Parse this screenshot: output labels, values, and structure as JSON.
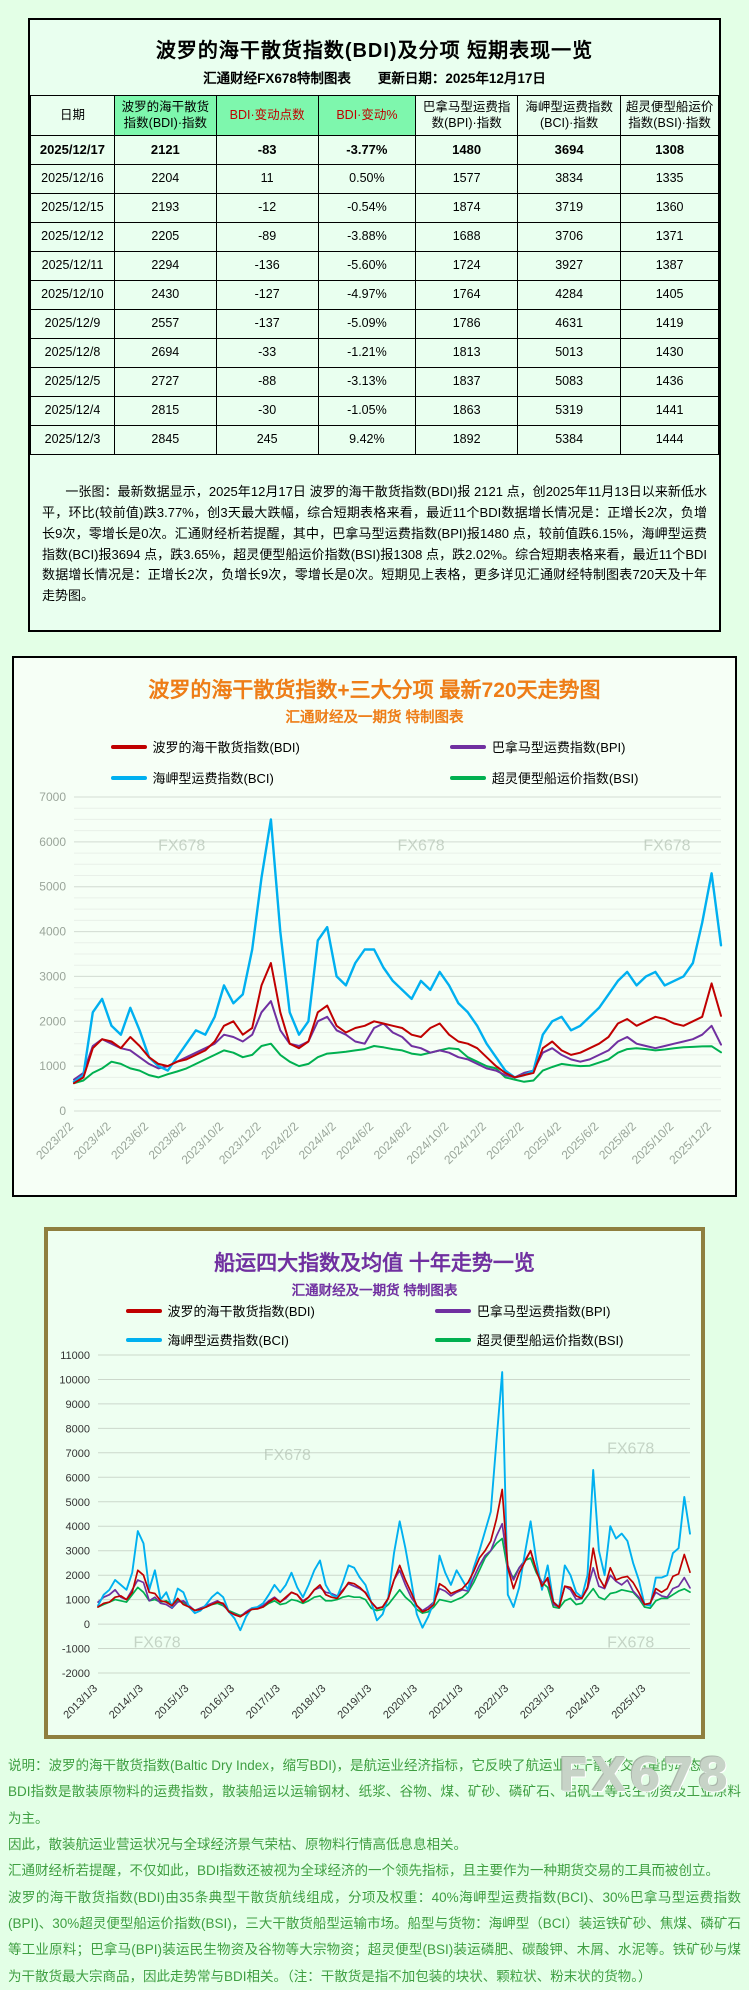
{
  "table_section": {
    "title": "波罗的海干散货指数(BDI)及分项  短期表现一览",
    "subtitle": "汇通财经FX678特制图表　　更新日期：2025年12月17日",
    "columns": [
      "日期",
      "波罗的海干散货指数(BDI)·指数",
      "BDI·变动点数",
      "BDI·变动%",
      "巴拿马型运费指数(BPI)·指数",
      "海岬型运费指数(BCI)·指数",
      "超灵便型船运价指数(BSI)·指数"
    ],
    "rows": [
      {
        "date": "2025/12/17",
        "bdi": "2121",
        "change": "-83",
        "change_pct": "-3.77%",
        "bpi": "1480",
        "bci": "3694",
        "bsi": "1308"
      },
      {
        "date": "2025/12/16",
        "bdi": "2204",
        "change": "11",
        "change_pct": "0.50%",
        "bpi": "1577",
        "bci": "3834",
        "bsi": "1335"
      },
      {
        "date": "2025/12/15",
        "bdi": "2193",
        "change": "-12",
        "change_pct": "-0.54%",
        "bpi": "1874",
        "bci": "3719",
        "bsi": "1360"
      },
      {
        "date": "2025/12/12",
        "bdi": "2205",
        "change": "-89",
        "change_pct": "-3.88%",
        "bpi": "1688",
        "bci": "3706",
        "bsi": "1371"
      },
      {
        "date": "2025/12/11",
        "bdi": "2294",
        "change": "-136",
        "change_pct": "-5.60%",
        "bpi": "1724",
        "bci": "3927",
        "bsi": "1387"
      },
      {
        "date": "2025/12/10",
        "bdi": "2430",
        "change": "-127",
        "change_pct": "-4.97%",
        "bpi": "1764",
        "bci": "4284",
        "bsi": "1405"
      },
      {
        "date": "2025/12/9",
        "bdi": "2557",
        "change": "-137",
        "change_pct": "-5.09%",
        "bpi": "1786",
        "bci": "4631",
        "bsi": "1419"
      },
      {
        "date": "2025/12/8",
        "bdi": "2694",
        "change": "-33",
        "change_pct": "-1.21%",
        "bpi": "1813",
        "bci": "5013",
        "bsi": "1430"
      },
      {
        "date": "2025/12/5",
        "bdi": "2727",
        "change": "-88",
        "change_pct": "-3.13%",
        "bpi": "1837",
        "bci": "5083",
        "bsi": "1436"
      },
      {
        "date": "2025/12/4",
        "bdi": "2815",
        "change": "-30",
        "change_pct": "-1.05%",
        "bpi": "1863",
        "bci": "5319",
        "bsi": "1441"
      },
      {
        "date": "2025/12/3",
        "bdi": "2845",
        "change": "245",
        "change_pct": "9.42%",
        "bpi": "1892",
        "bci": "5384",
        "bsi": "1444"
      }
    ],
    "summary": "一张图：最新数据显示，2025年12月17日 波罗的海干散货指数(BDI)报 2121 点，创2025年11月13日以来新低水平，环比(较前值)跌3.77%，创3天最大跌幅，综合短期表格来看，最近11个BDI数据增长情况是：正增长2次，负增长9次，零增长是0次。汇通财经析若提醒，其中，巴拿马型运费指数(BPI)报1480 点，较前值跌6.15%，海岬型运费指数(BCI)报3694 点，跌3.65%，超灵便型船运价指数(BSI)报1308 点，跌2.02%。综合短期表格来看，最近11个BDI数据增长情况是：正增长2次，负增长9次，零增长是0次。短期见上表格，更多详见汇通财经特制图表720天及十年走势图。"
  },
  "chart720_section": {
    "title": "波罗的海干散货指数+三大分项  最新720天走势图",
    "subtitle": "汇通财经及一期货 特制图表"
  },
  "chart10y_section": {
    "title": "船运四大指数及均值 十年走势一览",
    "subtitle": "汇通财经及一期货 特制图表"
  },
  "footer": {
    "lines": [
      "说明：波罗的海干散货指数(Baltic Dry Index，缩写BDI)，是航运业经济指标，它反映了航运业的干散货交易量的动态。",
      "BDI指数是散装原物料的运费指数，散装船运以运输钢材、纸浆、谷物、煤、矿砂、磷矿石、铝矾土等民生物资及工业原料为主。",
      "因此，散装航运业营运状况与全球经济景气荣枯、原物料行情高低息息相关。",
      "汇通财经析若提醒，不仅如此，BDI指数还被视为全球经济的一个领先指标，且主要作为一种期货交易的工具而被创立。",
      "波罗的海干散货指数(BDI)由35条典型干散货航线组成，分项及权重：40%海岬型运费指数(BCI)、30%巴拿马型运费指数(BPI)、30%超灵便型船运价指数(BSI)，三大干散货船型运输市场。船型与货物：海岬型（BCI）装运铁矿砂、焦煤、磷矿石等工业原料；巴拿马(BPI)装运民生物资及谷物等大宗物资；超灵便型(BSI)装运磷肥、碳酸钾、木屑、水泥等。铁矿砂与煤为干散货最大宗商品，因此走势常与BDI相关。（注：干散货是指不加包装的块状、颗粒状、粉末状的货物。）"
    ],
    "watermark": "FX678"
  },
  "chart_data": [
    {
      "type": "line",
      "dom_id": "chart720",
      "title": "波罗的海干散货指数+三大分项  最新720天走势图",
      "subtitle": "汇通财经及一期货 特制图表",
      "ylim": [
        0,
        7000
      ],
      "grid_step": 1000,
      "minor_step": 250,
      "grid_color": "#d4ded4",
      "minor_color": "#e9f0e9",
      "label_color": "#9aa59a",
      "legend_position": "top",
      "x_tick_span": 0.986,
      "x_labels": [
        "2023/2/2",
        "2023/4/2",
        "2023/6/2",
        "2023/8/2",
        "2023/10/2",
        "2023/12/2",
        "2024/2/2",
        "2024/4/2",
        "2024/6/2",
        "2024/8/2",
        "2024/10/2",
        "2024/12/2",
        "2025/2/2",
        "2025/4/2",
        "2025/6/2",
        "2025/8/2",
        "2025/10/2",
        "2025/12/2"
      ],
      "watermarks": [
        [
          0.13,
          0.17
        ],
        [
          0.5,
          0.17
        ],
        [
          0.88,
          0.17
        ]
      ],
      "draw_order": [
        3,
        1,
        2,
        0
      ],
      "series": [
        {
          "name": "波罗的海干散货指数(BDI)",
          "color": "#c00000",
          "width": 2,
          "values": [
            620,
            750,
            1400,
            1600,
            1550,
            1400,
            1650,
            1450,
            1200,
            1050,
            1000,
            1100,
            1150,
            1250,
            1350,
            1550,
            1900,
            2000,
            1700,
            1850,
            2800,
            3300,
            2200,
            1500,
            1400,
            1550,
            2200,
            2350,
            1900,
            1750,
            1850,
            1900,
            2000,
            1950,
            1900,
            1850,
            1700,
            1650,
            1850,
            1950,
            1700,
            1550,
            1500,
            1400,
            1200,
            1000,
            850,
            750,
            800,
            850,
            1400,
            1550,
            1350,
            1250,
            1300,
            1400,
            1500,
            1650,
            1950,
            2050,
            1900,
            2000,
            2100,
            2050,
            1950,
            1900,
            2000,
            2100,
            2845,
            2121
          ]
        },
        {
          "name": "巴拿马型运费指数(BPI)",
          "color": "#7030a0",
          "width": 2,
          "values": [
            700,
            850,
            1450,
            1600,
            1500,
            1400,
            1350,
            1200,
            1050,
            950,
            1000,
            1100,
            1200,
            1300,
            1400,
            1500,
            1700,
            1650,
            1550,
            1700,
            2200,
            2450,
            1800,
            1500,
            1450,
            1550,
            2000,
            2100,
            1800,
            1700,
            1550,
            1500,
            1850,
            1950,
            1750,
            1650,
            1450,
            1400,
            1300,
            1350,
            1300,
            1200,
            1150,
            1050,
            950,
            900,
            800,
            750,
            850,
            900,
            1300,
            1400,
            1250,
            1150,
            1100,
            1150,
            1250,
            1350,
            1550,
            1650,
            1500,
            1450,
            1400,
            1450,
            1500,
            1550,
            1600,
            1700,
            1900,
            1480
          ]
        },
        {
          "name": "海岬型运费指数(BCI)",
          "color": "#00b0f0",
          "width": 2.4,
          "values": [
            650,
            800,
            2200,
            2500,
            1900,
            1700,
            2300,
            1800,
            1200,
            1000,
            900,
            1200,
            1500,
            1800,
            1700,
            2100,
            2800,
            2400,
            2600,
            3600,
            5200,
            6500,
            4000,
            2200,
            1700,
            2000,
            3800,
            4100,
            3000,
            2800,
            3300,
            3600,
            3600,
            3200,
            2900,
            2700,
            2500,
            2900,
            2700,
            3100,
            2800,
            2400,
            2200,
            1900,
            1500,
            1200,
            900,
            750,
            800,
            900,
            1700,
            2000,
            2100,
            1800,
            1900,
            2100,
            2300,
            2600,
            2900,
            3100,
            2800,
            3000,
            3100,
            2800,
            2900,
            3000,
            3300,
            4200,
            5300,
            3694
          ]
        },
        {
          "name": "超灵便型船运价指数(BSI)",
          "color": "#00b050",
          "width": 2,
          "values": [
            620,
            680,
            850,
            950,
            1100,
            1050,
            950,
            900,
            800,
            750,
            820,
            880,
            950,
            1050,
            1150,
            1250,
            1350,
            1300,
            1200,
            1250,
            1450,
            1500,
            1250,
            1100,
            1000,
            1050,
            1200,
            1280,
            1300,
            1320,
            1350,
            1380,
            1450,
            1420,
            1380,
            1350,
            1280,
            1250,
            1300,
            1350,
            1400,
            1380,
            1200,
            1100,
            1000,
            950,
            750,
            700,
            650,
            680,
            900,
            980,
            1050,
            1020,
            1000,
            1010,
            1080,
            1150,
            1300,
            1380,
            1400,
            1380,
            1350,
            1370,
            1400,
            1420,
            1430,
            1440,
            1444,
            1308
          ]
        }
      ]
    },
    {
      "type": "line",
      "dom_id": "chart10y",
      "title": "船运四大指数及均值 十年走势一览",
      "subtitle": "汇通财经及一期货 特制图表",
      "ylim": [
        -2000,
        11000
      ],
      "grid_step": 1000,
      "minor_step": 0,
      "grid_color": "#ccd8cc",
      "minor_color": "#e9f0e9",
      "label_color": "#333333",
      "legend_position": "overlay",
      "x_tick_span": 0.926,
      "x_labels": [
        "2013/1/3",
        "2014/1/3",
        "2015/1/3",
        "2016/1/3",
        "2017/1/3",
        "2018/1/3",
        "2019/1/3",
        "2020/1/3",
        "2021/1/3",
        "2022/1/3",
        "2023/1/3",
        "2024/1/3",
        "2025/1/3"
      ],
      "watermarks": [
        [
          0.28,
          0.33
        ],
        [
          0.86,
          0.31
        ],
        [
          0.06,
          0.92
        ],
        [
          0.86,
          0.92
        ]
      ],
      "draw_order": [
        3,
        1,
        2,
        0
      ],
      "series": [
        {
          "name": "波罗的海干散货指数(BDI)",
          "color": "#c00000",
          "width": 1.7,
          "values": [
            700,
            850,
            900,
            1100,
            1150,
            1000,
            1300,
            2200,
            2000,
            1300,
            1250,
            950,
            900,
            750,
            1050,
            800,
            700,
            560,
            600,
            700,
            800,
            900,
            850,
            500,
            380,
            300,
            450,
            600,
            620,
            700,
            900,
            1050,
            900,
            1100,
            1300,
            1200,
            900,
            1100,
            1400,
            1600,
            1200,
            1100,
            1050,
            1350,
            1700,
            1650,
            1500,
            1270,
            900,
            630,
            700,
            1050,
            1800,
            2400,
            1800,
            1300,
            760,
            500,
            600,
            800,
            1650,
            1500,
            1250,
            1350,
            1450,
            1700,
            2150,
            2700,
            3000,
            3400,
            4300,
            5500,
            2300,
            1450,
            2100,
            2550,
            3000,
            2200,
            1550,
            1900,
            900,
            680,
            1550,
            1500,
            1150,
            1050,
            1500,
            3100,
            1900,
            1500,
            2300,
            1800,
            1900,
            1950,
            1700,
            1300,
            800,
            850,
            1450,
            1300,
            1450,
            1950,
            2050,
            2845,
            2121
          ]
        },
        {
          "name": "巴拿马型运费指数(BPI)",
          "color": "#7030a0",
          "width": 1.7,
          "values": [
            900,
            1100,
            1200,
            1400,
            1100,
            1000,
            1400,
            1800,
            1700,
            950,
            1100,
            850,
            800,
            650,
            900,
            950,
            750,
            550,
            650,
            750,
            850,
            950,
            800,
            500,
            400,
            300,
            500,
            650,
            680,
            750,
            950,
            1100,
            900,
            1050,
            1300,
            1200,
            950,
            1100,
            1400,
            1500,
            1300,
            1250,
            1150,
            1400,
            1650,
            1550,
            1450,
            1300,
            900,
            650,
            700,
            1050,
            1800,
            2200,
            1600,
            1100,
            750,
            550,
            700,
            900,
            1450,
            1350,
            1150,
            1300,
            1400,
            1350,
            1900,
            2400,
            2800,
            3000,
            3600,
            4100,
            2400,
            1800,
            2300,
            2600,
            3000,
            2200,
            1700,
            1800,
            800,
            700,
            1550,
            1400,
            1000,
            1050,
            1450,
            2300,
            1550,
            1450,
            2000,
            1750,
            1600,
            1800,
            1350,
            1100,
            800,
            850,
            1300,
            1150,
            1100,
            1450,
            1550,
            1900,
            1480
          ]
        },
        {
          "name": "海岬型运费指数(BCI)",
          "color": "#00b0f0",
          "width": 1.9,
          "values": [
            750,
            1200,
            1400,
            1800,
            1600,
            1400,
            2100,
            3800,
            3300,
            1400,
            2200,
            1000,
            1300,
            700,
            1450,
            1300,
            700,
            450,
            550,
            800,
            1100,
            1300,
            1100,
            500,
            230,
            -250,
            300,
            650,
            700,
            850,
            1200,
            1600,
            1300,
            1600,
            2100,
            1500,
            1100,
            1600,
            2200,
            2600,
            1600,
            1200,
            1100,
            1700,
            2400,
            2300,
            1900,
            1600,
            900,
            150,
            400,
            1100,
            2900,
            4200,
            3100,
            1800,
            400,
            -150,
            300,
            900,
            2800,
            2100,
            1600,
            2200,
            1800,
            1400,
            2300,
            3000,
            3800,
            4600,
            7500,
            10300,
            1200,
            700,
            1500,
            2900,
            4200,
            2600,
            1400,
            2400,
            900,
            700,
            2400,
            2000,
            1300,
            1100,
            2000,
            6300,
            3000,
            2000,
            4000,
            3500,
            3700,
            3400,
            2500,
            1800,
            800,
            750,
            1900,
            1900,
            2000,
            2900,
            3100,
            5200,
            3694
          ]
        },
        {
          "name": "超灵便型船运价指数(BSI)",
          "color": "#00b050",
          "width": 1.7,
          "values": [
            700,
            800,
            900,
            1000,
            950,
            900,
            1200,
            1500,
            1300,
            950,
            1000,
            900,
            950,
            800,
            950,
            900,
            700,
            560,
            650,
            700,
            800,
            850,
            750,
            550,
            450,
            350,
            450,
            600,
            650,
            700,
            850,
            950,
            800,
            850,
            1000,
            950,
            850,
            950,
            1100,
            1150,
            950,
            950,
            1000,
            1100,
            1150,
            1100,
            1100,
            1000,
            650,
            550,
            600,
            800,
            1100,
            1400,
            1100,
            900,
            600,
            450,
            500,
            700,
            1000,
            950,
            900,
            1000,
            1100,
            1300,
            1700,
            2200,
            2700,
            3000,
            3300,
            3500,
            2200,
            1900,
            2300,
            2600,
            2700,
            2100,
            1700,
            1500,
            700,
            650,
            950,
            1050,
            800,
            850,
            1150,
            1450,
            1100,
            1000,
            1250,
            1300,
            1400,
            1350,
            1300,
            1050,
            700,
            650,
            950,
            1050,
            1050,
            1200,
            1350,
            1440,
            1308
          ]
        }
      ]
    }
  ]
}
